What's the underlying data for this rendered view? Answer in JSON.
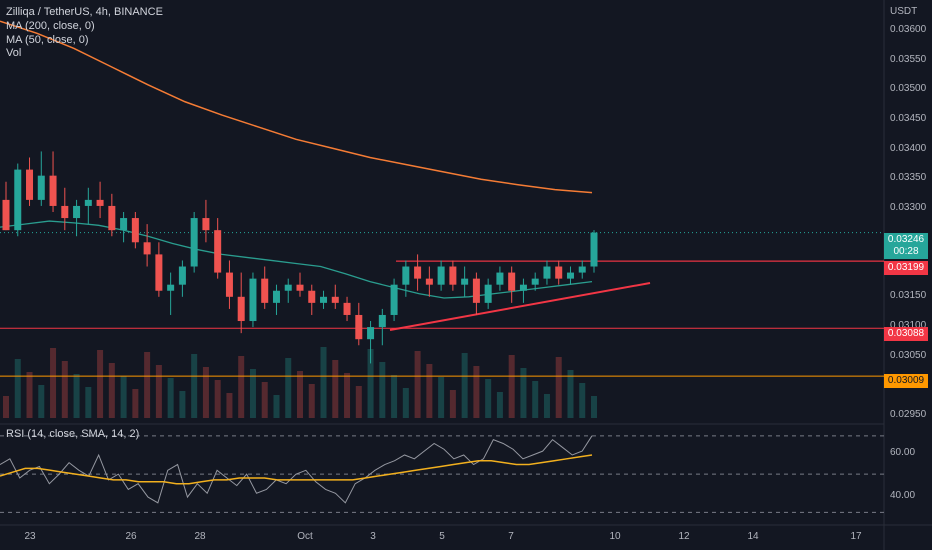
{
  "header": {
    "symbol_line": "Zilliqa / TetherUS, 4h, BINANCE",
    "ma200_line": "MA (200, close, 0)",
    "ma50_line": "MA (50, close, 0)",
    "vol_line": "Vol",
    "rsi_line": "RSI (14, close, SMA, 14, 2)"
  },
  "price_axis": {
    "currency": "USDT",
    "ticks": [
      "0.03600",
      "0.03550",
      "0.03500",
      "0.03450",
      "0.03400",
      "0.03350",
      "0.03300",
      "0.03150",
      "0.03100",
      "0.03050",
      "0.02950"
    ]
  },
  "rsi_axis": {
    "ticks": [
      "60.00",
      "40.00"
    ]
  },
  "time_axis": {
    "ticks": [
      "23",
      "26",
      "28",
      "Oct",
      "3",
      "5",
      "7",
      "10",
      "12",
      "14",
      "17"
    ]
  },
  "tags": {
    "last_price": "0.03246",
    "countdown": "00:28",
    "red_level": "0.03199",
    "red_level_2": "0.03088",
    "orange_level": "0.03009"
  },
  "colors": {
    "background": "#131722",
    "up": "#26a69a",
    "down": "#ef5350",
    "ma200": "#f57c35",
    "ma50": "#2a9d8f",
    "rsi_line": "#9598a1",
    "rsi_sma": "#f2b01e",
    "red_hline": "#f23645",
    "orange_hline": "#ff9800",
    "trendline": "#f23645"
  },
  "chart_data": {
    "type": "candlestick",
    "interval": "4h",
    "exchange": "BINANCE",
    "price_range": [
      0.0293,
      0.0363
    ],
    "rsi_range": [
      25,
      72
    ],
    "horizontal_levels": [
      0.03199,
      0.03088,
      0.03009
    ],
    "last_price": 0.03246,
    "candles": [
      [
        0.033,
        0.0333,
        0.0325,
        0.0325
      ],
      [
        0.0325,
        0.0336,
        0.0324,
        0.0335
      ],
      [
        0.0335,
        0.0337,
        0.0329,
        0.033
      ],
      [
        0.033,
        0.0338,
        0.0329,
        0.0334
      ],
      [
        0.0334,
        0.0338,
        0.0328,
        0.0329
      ],
      [
        0.0329,
        0.0332,
        0.0325,
        0.0327
      ],
      [
        0.0327,
        0.033,
        0.0324,
        0.0329
      ],
      [
        0.0329,
        0.0332,
        0.0326,
        0.033
      ],
      [
        0.033,
        0.0333,
        0.0327,
        0.0329
      ],
      [
        0.0329,
        0.0331,
        0.0324,
        0.0325
      ],
      [
        0.0325,
        0.0328,
        0.0323,
        0.0327
      ],
      [
        0.0327,
        0.0328,
        0.0322,
        0.0323
      ],
      [
        0.0323,
        0.0326,
        0.0319,
        0.0321
      ],
      [
        0.0321,
        0.0323,
        0.0314,
        0.0315
      ],
      [
        0.0315,
        0.0318,
        0.0311,
        0.0316
      ],
      [
        0.0316,
        0.032,
        0.0314,
        0.0319
      ],
      [
        0.0319,
        0.0328,
        0.0318,
        0.0327
      ],
      [
        0.0327,
        0.033,
        0.0323,
        0.0325
      ],
      [
        0.0325,
        0.0327,
        0.0317,
        0.0318
      ],
      [
        0.0318,
        0.032,
        0.0312,
        0.0314
      ],
      [
        0.0314,
        0.0318,
        0.0308,
        0.031
      ],
      [
        0.031,
        0.0318,
        0.0309,
        0.0317
      ],
      [
        0.0317,
        0.0319,
        0.0312,
        0.0313
      ],
      [
        0.0313,
        0.0316,
        0.0311,
        0.0315
      ],
      [
        0.0315,
        0.0317,
        0.0313,
        0.0316
      ],
      [
        0.0316,
        0.0318,
        0.0314,
        0.0315
      ],
      [
        0.0315,
        0.0316,
        0.0311,
        0.0313
      ],
      [
        0.0313,
        0.0315,
        0.0312,
        0.0314
      ],
      [
        0.0314,
        0.0316,
        0.0312,
        0.0313
      ],
      [
        0.0313,
        0.0314,
        0.031,
        0.0311
      ],
      [
        0.0311,
        0.0313,
        0.0306,
        0.0307
      ],
      [
        0.0307,
        0.031,
        0.0303,
        0.0309
      ],
      [
        0.0309,
        0.0312,
        0.0306,
        0.0311
      ],
      [
        0.0311,
        0.0317,
        0.031,
        0.0316
      ],
      [
        0.0316,
        0.032,
        0.0314,
        0.0319
      ],
      [
        0.0319,
        0.0321,
        0.0315,
        0.0317
      ],
      [
        0.0317,
        0.0319,
        0.0314,
        0.0316
      ],
      [
        0.0316,
        0.032,
        0.0315,
        0.0319
      ],
      [
        0.0319,
        0.032,
        0.0315,
        0.0316
      ],
      [
        0.0316,
        0.0319,
        0.0314,
        0.0317
      ],
      [
        0.0317,
        0.0318,
        0.0311,
        0.0313
      ],
      [
        0.0313,
        0.0317,
        0.0312,
        0.0316
      ],
      [
        0.0316,
        0.0319,
        0.0315,
        0.0318
      ],
      [
        0.0318,
        0.0319,
        0.0313,
        0.0315
      ],
      [
        0.0315,
        0.0317,
        0.0313,
        0.0316
      ],
      [
        0.0316,
        0.0318,
        0.0315,
        0.0317
      ],
      [
        0.0317,
        0.032,
        0.0316,
        0.0319
      ],
      [
        0.0319,
        0.032,
        0.0316,
        0.0317
      ],
      [
        0.0317,
        0.0319,
        0.0316,
        0.0318
      ],
      [
        0.0318,
        0.032,
        0.0317,
        0.0319
      ],
      [
        0.0319,
        0.0325,
        0.0318,
        0.03246
      ]
    ],
    "ma50": [
      0.03255,
      0.0326,
      0.03265,
      0.03262,
      0.03258,
      0.0325,
      0.0324,
      0.03228,
      0.03218,
      0.0321,
      0.03205,
      0.032,
      0.03195,
      0.0319,
      0.03178,
      0.03165,
      0.03155,
      0.03145,
      0.03138,
      0.0314,
      0.03145,
      0.0315,
      0.03155,
      0.0316,
      0.03165
    ],
    "ma200": [
      0.03595,
      0.03575,
      0.0355,
      0.0352,
      0.0349,
      0.03462,
      0.0344,
      0.0342,
      0.034,
      0.03385,
      0.0337,
      0.03358,
      0.03346,
      0.03334,
      0.03325,
      0.03317,
      0.03312
    ],
    "rsi": [
      55,
      58,
      48,
      52,
      54,
      45,
      50,
      56,
      52,
      49,
      60,
      47,
      50,
      42,
      45,
      38,
      35,
      52,
      55,
      38,
      45,
      40,
      52,
      48,
      44,
      50,
      40,
      42,
      47,
      45,
      50,
      52,
      46,
      42,
      40,
      35,
      45,
      48,
      52,
      55,
      57,
      60,
      58,
      62,
      66,
      63,
      58,
      60,
      55,
      58,
      68,
      66,
      63,
      58,
      60,
      62,
      68,
      64,
      60,
      62,
      70
    ],
    "rsi_sma": [
      49,
      51,
      53,
      53,
      52,
      51,
      50,
      49,
      48,
      47,
      47,
      46,
      46,
      46,
      45,
      45,
      46,
      47,
      47,
      48,
      48,
      48,
      47,
      47,
      47,
      47,
      47,
      47,
      47,
      48,
      49,
      50,
      51,
      52,
      53,
      54,
      55,
      56,
      57,
      57,
      56,
      55,
      55,
      56,
      57,
      58,
      59,
      60
    ]
  }
}
